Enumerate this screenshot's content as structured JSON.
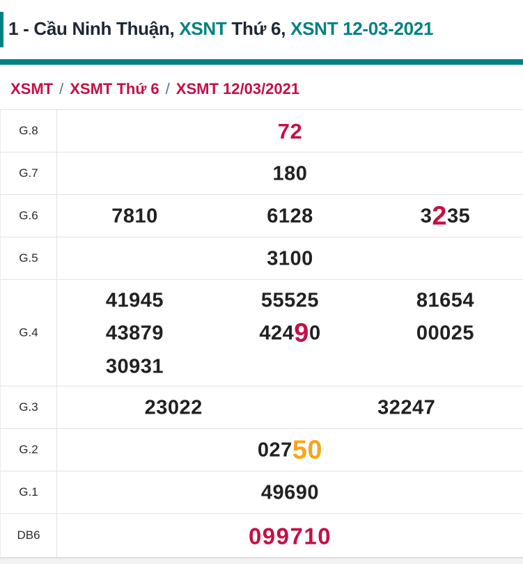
{
  "colors": {
    "teal": "#008184",
    "red": "#c50f45",
    "orange": "#f6a51c",
    "text": "#212121"
  },
  "header": {
    "title_segments": [
      {
        "text": "1 - Cầu Ninh Thuận, ",
        "style": "plain"
      },
      {
        "text": "XSNT",
        "style": "link"
      },
      {
        "text": " Thứ 6, ",
        "style": "plain"
      },
      {
        "text": "XSNT 12-03-2021",
        "style": "link"
      }
    ]
  },
  "breadcrumb": {
    "separator": "/",
    "items": [
      {
        "label": "XSMT"
      },
      {
        "label": "XSMT Thứ 6"
      },
      {
        "label": "XSMT 12/03/2021"
      }
    ]
  },
  "table": {
    "rows": [
      {
        "id": "g8",
        "label": "G.8",
        "variant": "prize-red",
        "lines": [
          [
            [
              {
                "t": "72",
                "s": "red"
              }
            ]
          ]
        ]
      },
      {
        "id": "g7",
        "label": "G.7",
        "lines": [
          [
            [
              {
                "t": "180"
              }
            ]
          ]
        ]
      },
      {
        "id": "g6",
        "label": "G.6",
        "lines": [
          [
            [
              {
                "t": "7810"
              }
            ],
            [
              {
                "t": "6128"
              }
            ],
            [
              {
                "t": "3"
              },
              {
                "t": "2",
                "s": "hl-red"
              },
              {
                "t": "35"
              }
            ]
          ]
        ]
      },
      {
        "id": "g5",
        "label": "G.5",
        "lines": [
          [
            [
              {
                "t": "3100"
              }
            ]
          ]
        ]
      },
      {
        "id": "g4",
        "label": "G.4",
        "lines": [
          [
            [
              {
                "t": "41945"
              }
            ],
            [
              {
                "t": "55525"
              }
            ],
            [
              {
                "t": "81654"
              }
            ]
          ],
          [
            [
              {
                "t": "43879"
              }
            ],
            [
              {
                "t": "424"
              },
              {
                "t": "9",
                "s": "hl-red"
              },
              {
                "t": "0"
              }
            ],
            [
              {
                "t": "00025"
              }
            ]
          ],
          [
            [
              {
                "t": "30931"
              }
            ],
            [],
            []
          ]
        ]
      },
      {
        "id": "g3",
        "label": "G.3",
        "lines": [
          [
            [
              {
                "t": "23022"
              }
            ],
            [
              {
                "t": "32247"
              }
            ]
          ]
        ]
      },
      {
        "id": "g2",
        "label": "G.2",
        "lines": [
          [
            [
              {
                "t": "027"
              },
              {
                "t": "50",
                "s": "hl-orange"
              }
            ]
          ]
        ]
      },
      {
        "id": "g1",
        "label": "G.1",
        "lines": [
          [
            [
              {
                "t": "49690"
              }
            ]
          ]
        ]
      },
      {
        "id": "db6",
        "label": "DB6",
        "variant": "prize-db",
        "lines": [
          [
            [
              {
                "t": "099710",
                "s": "red"
              }
            ]
          ]
        ]
      }
    ]
  }
}
